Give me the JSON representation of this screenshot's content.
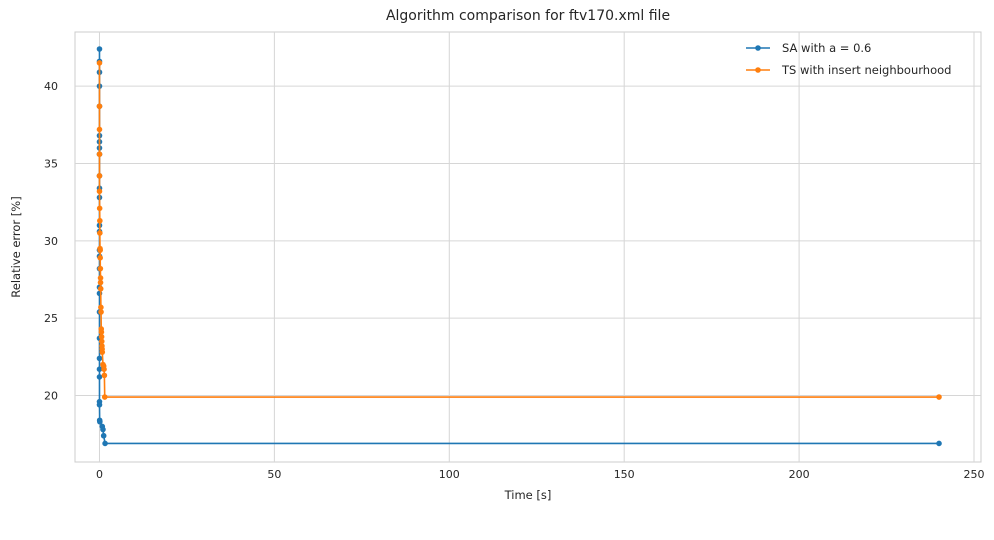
{
  "chart_data": {
    "type": "line",
    "title": "Algorithm comparison for ftv170.xml file",
    "xlabel": "Time [s]",
    "ylabel": "Relative error [%]",
    "xlim": [
      -7,
      252
    ],
    "ylim": [
      15.7,
      43.5
    ],
    "xticks": [
      0,
      50,
      100,
      150,
      200,
      250
    ],
    "yticks": [
      20,
      25,
      30,
      35,
      40
    ],
    "grid": true,
    "legend_position": "top-right",
    "series": [
      {
        "name": "SA with a = 0.6",
        "color": "#1f77b4",
        "marker": "circle",
        "points": [
          [
            0.0,
            42.4
          ],
          [
            0.0,
            41.6
          ],
          [
            0.0,
            40.9
          ],
          [
            0.0,
            40.0
          ],
          [
            0.0,
            38.7
          ],
          [
            0.0,
            36.8
          ],
          [
            0.0,
            36.4
          ],
          [
            0.0,
            36.0
          ],
          [
            0.0,
            35.6
          ],
          [
            0.0,
            34.2
          ],
          [
            0.0,
            33.4
          ],
          [
            0.0,
            32.8
          ],
          [
            0.0,
            31.0
          ],
          [
            0.0,
            30.6
          ],
          [
            0.0,
            29.4
          ],
          [
            0.0,
            29.0
          ],
          [
            0.0,
            28.2
          ],
          [
            0.0,
            27.0
          ],
          [
            0.0,
            26.6
          ],
          [
            0.0,
            25.4
          ],
          [
            0.0,
            23.7
          ],
          [
            0.0,
            22.4
          ],
          [
            0.0,
            21.7
          ],
          [
            0.0,
            21.2
          ],
          [
            0.0,
            19.6
          ],
          [
            0.0,
            19.4
          ],
          [
            0.05,
            18.4
          ],
          [
            0.1,
            18.3
          ],
          [
            0.8,
            18.0
          ],
          [
            1.0,
            17.8
          ],
          [
            1.2,
            17.4
          ],
          [
            1.6,
            16.9
          ],
          [
            240.0,
            16.9
          ]
        ]
      },
      {
        "name": "TS with insert neighbourhood",
        "color": "#ff7f0e",
        "marker": "circle",
        "points": [
          [
            0.0,
            41.5
          ],
          [
            0.0,
            38.7
          ],
          [
            0.0,
            37.2
          ],
          [
            0.0,
            35.6
          ],
          [
            0.0,
            34.2
          ],
          [
            0.0,
            33.2
          ],
          [
            0.05,
            32.1
          ],
          [
            0.1,
            31.3
          ],
          [
            0.1,
            30.5
          ],
          [
            0.15,
            29.5
          ],
          [
            0.2,
            29.4
          ],
          [
            0.2,
            28.9
          ],
          [
            0.25,
            28.2
          ],
          [
            0.3,
            27.6
          ],
          [
            0.3,
            27.3
          ],
          [
            0.35,
            26.9
          ],
          [
            0.4,
            25.7
          ],
          [
            0.45,
            25.4
          ],
          [
            0.5,
            24.3
          ],
          [
            0.55,
            24.1
          ],
          [
            0.6,
            23.8
          ],
          [
            0.65,
            23.5
          ],
          [
            0.7,
            23.2
          ],
          [
            0.75,
            23.0
          ],
          [
            0.8,
            22.8
          ],
          [
            1.0,
            22.0
          ],
          [
            1.2,
            21.9
          ],
          [
            1.3,
            21.7
          ],
          [
            1.4,
            21.3
          ],
          [
            1.5,
            19.9
          ],
          [
            240.0,
            19.9
          ]
        ]
      }
    ]
  }
}
